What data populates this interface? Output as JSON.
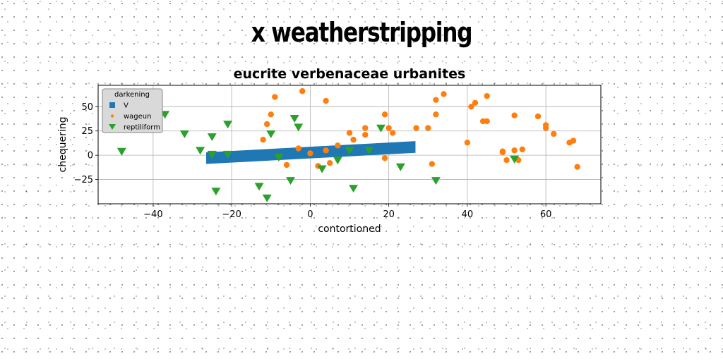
{
  "suptitle": "x weatherstripping",
  "chart_data": {
    "type": "scatter",
    "title": "eucrite verbenaceae urbanites",
    "xlabel": "contortioned",
    "ylabel": "chequering",
    "xlim": [
      -54,
      74
    ],
    "ylim": [
      -50,
      72
    ],
    "xticks": [
      -40,
      -20,
      0,
      20,
      40,
      60
    ],
    "yticks": [
      -25,
      0,
      25,
      50
    ],
    "xtick_labels": [
      "−40",
      "−20",
      "0",
      "20",
      "40",
      "60"
    ],
    "ytick_labels": [
      "−25",
      "0",
      "25",
      "50"
    ],
    "grid": true,
    "legend": {
      "title": "darkening",
      "placement": "upper-left",
      "entries": [
        "V",
        "wageun",
        "reptiliform"
      ]
    },
    "colors": {
      "V": "#1f77b4",
      "wageun": "#ff7f0e",
      "reptiliform": "#2ca02c"
    },
    "series": [
      {
        "name": "V",
        "kind": "band",
        "x": [
          -26.5,
          26.8
        ],
        "y_center": [
          -3,
          8.5
        ],
        "half_width": 6
      },
      {
        "name": "wageun",
        "kind": "circle",
        "points": [
          [
            -9,
            60
          ],
          [
            -2,
            66
          ],
          [
            4,
            56
          ],
          [
            -10,
            42
          ],
          [
            -11,
            32
          ],
          [
            -12,
            16
          ],
          [
            -6,
            -10
          ],
          [
            -3,
            7
          ],
          [
            0,
            2
          ],
          [
            2,
            -11
          ],
          [
            4,
            5
          ],
          [
            5,
            -8
          ],
          [
            7,
            10
          ],
          [
            10,
            23
          ],
          [
            11,
            16
          ],
          [
            14,
            21
          ],
          [
            14,
            28
          ],
          [
            19,
            42
          ],
          [
            20,
            28
          ],
          [
            21,
            23
          ],
          [
            19,
            -3
          ],
          [
            27,
            28
          ],
          [
            30,
            28
          ],
          [
            31,
            -9
          ],
          [
            32,
            42
          ],
          [
            32,
            57
          ],
          [
            34,
            63
          ],
          [
            40,
            13
          ],
          [
            41,
            50
          ],
          [
            42,
            54
          ],
          [
            44,
            35
          ],
          [
            45,
            35
          ],
          [
            45,
            61
          ],
          [
            49,
            4
          ],
          [
            49,
            3
          ],
          [
            50,
            -5
          ],
          [
            52,
            5
          ],
          [
            52,
            41
          ],
          [
            53,
            -5
          ],
          [
            54,
            6
          ],
          [
            58,
            40
          ],
          [
            60,
            31
          ],
          [
            60,
            28
          ],
          [
            62,
            22
          ],
          [
            66,
            13
          ],
          [
            67,
            15
          ],
          [
            68,
            -12
          ]
        ]
      },
      {
        "name": "reptiliform",
        "kind": "triangle",
        "points": [
          [
            -48,
            4
          ],
          [
            -37,
            42
          ],
          [
            -32,
            22
          ],
          [
            -28,
            5
          ],
          [
            -25,
            19
          ],
          [
            -25,
            1
          ],
          [
            -24,
            -37
          ],
          [
            -21,
            1
          ],
          [
            -21,
            32
          ],
          [
            -13,
            -32
          ],
          [
            -11,
            -44
          ],
          [
            -10,
            22
          ],
          [
            -8,
            -2
          ],
          [
            -5,
            -26
          ],
          [
            -4,
            38
          ],
          [
            -3,
            29
          ],
          [
            3,
            -14
          ],
          [
            7,
            -5
          ],
          [
            10,
            5
          ],
          [
            11,
            -34
          ],
          [
            15,
            5
          ],
          [
            18,
            28
          ],
          [
            23,
            -12
          ],
          [
            32,
            -26
          ],
          [
            52,
            -4
          ]
        ]
      }
    ]
  }
}
